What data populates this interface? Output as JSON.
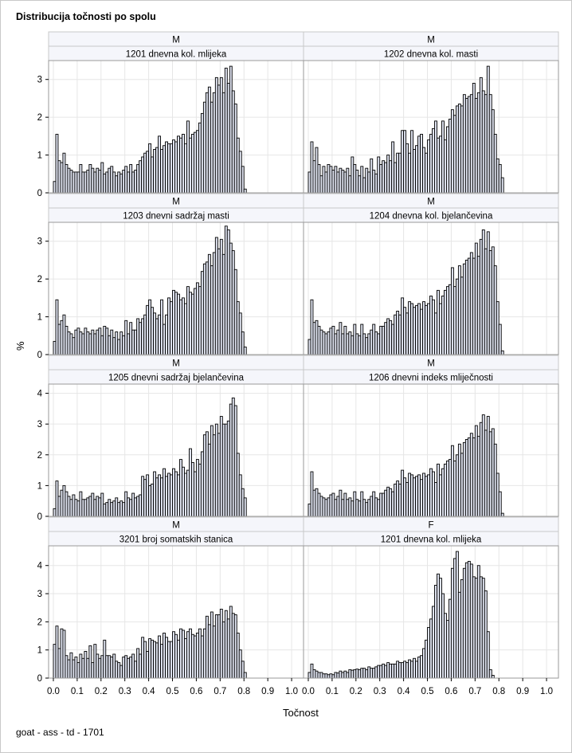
{
  "title": "Distribucija točnosti po spolu",
  "footnote": "goat - ass - td - 1701",
  "chart_data": {
    "type": "bar",
    "subtype": "histogram-panel",
    "xlabel": "Točnost",
    "ylabel": "%",
    "xlim": [
      -0.02,
      1.05
    ],
    "xticks": [
      0.0,
      0.1,
      0.2,
      0.3,
      0.4,
      0.5,
      0.6,
      0.7,
      0.8,
      0.9,
      1.0
    ],
    "xtick_labels": [
      "0.0",
      "0.1",
      "0.2",
      "0.3",
      "0.4",
      "0.5",
      "0.6",
      "0.7",
      "0.8",
      "0.9",
      "1.0"
    ],
    "bin_start": 0.0,
    "bin_width": 0.01,
    "grid": true,
    "rows": [
      {
        "ylim": [
          0,
          3.5
        ],
        "yticks": [
          0,
          1,
          2,
          3
        ],
        "ytick_labels": [
          "0",
          "1",
          "2",
          "3"
        ]
      },
      {
        "ylim": [
          0,
          3.5
        ],
        "yticks": [
          0,
          1,
          2,
          3
        ],
        "ytick_labels": [
          "0",
          "1",
          "2",
          "3"
        ]
      },
      {
        "ylim": [
          0,
          4.3
        ],
        "yticks": [
          0,
          1,
          2,
          3,
          4
        ],
        "ytick_labels": [
          "0",
          "1",
          "2",
          "3",
          "4"
        ]
      },
      {
        "ylim": [
          0,
          4.7
        ],
        "yticks": [
          0,
          1,
          2,
          3,
          4
        ],
        "ytick_labels": [
          "0",
          "1",
          "2",
          "3",
          "4"
        ]
      }
    ],
    "panels": [
      {
        "sex": "M",
        "trait": "1201 dnevna kol. mlijeka",
        "row": 0,
        "col": 0,
        "values": [
          0.3,
          1.55,
          0.85,
          0.8,
          1.05,
          0.75,
          0.65,
          0.6,
          0.55,
          0.55,
          0.55,
          0.75,
          0.55,
          0.55,
          0.6,
          0.75,
          0.65,
          0.55,
          0.65,
          0.6,
          0.8,
          0.5,
          0.55,
          0.65,
          0.7,
          0.55,
          0.45,
          0.55,
          0.5,
          0.6,
          0.7,
          0.55,
          0.75,
          0.55,
          0.6,
          0.75,
          0.85,
          0.95,
          1.05,
          1.1,
          1.3,
          0.95,
          1.15,
          1.2,
          1.5,
          1.15,
          1.25,
          1.35,
          1.3,
          1.3,
          1.4,
          1.35,
          1.5,
          1.45,
          1.55,
          1.3,
          1.9,
          1.45,
          1.55,
          1.6,
          1.65,
          1.85,
          2.1,
          2.4,
          2.65,
          2.8,
          2.4,
          2.65,
          3.05,
          2.85,
          3.05,
          2.65,
          3.3,
          2.9,
          3.35,
          2.7,
          2.35,
          1.45,
          1.1,
          0.7,
          0.1
        ]
      },
      {
        "sex": "M",
        "trait": "1202 dnevna kol. masti",
        "row": 0,
        "col": 1,
        "values": [
          0.55,
          1.35,
          0.85,
          1.2,
          0.75,
          0.45,
          0.7,
          0.55,
          0.75,
          0.7,
          0.6,
          0.7,
          0.55,
          0.65,
          0.6,
          0.55,
          0.65,
          0.45,
          0.95,
          0.75,
          0.6,
          0.45,
          0.7,
          0.4,
          0.65,
          0.55,
          0.9,
          0.6,
          0.5,
          0.95,
          0.75,
          0.85,
          0.8,
          1.0,
          0.85,
          1.35,
          0.8,
          1.05,
          1.05,
          1.65,
          1.65,
          1.3,
          1.05,
          1.65,
          1.15,
          1.25,
          1.5,
          1.55,
          1.2,
          1.05,
          1.4,
          1.55,
          1.7,
          1.9,
          1.45,
          1.5,
          1.9,
          1.4,
          1.75,
          1.95,
          2.2,
          2.05,
          2.3,
          2.35,
          2.3,
          2.6,
          2.5,
          2.55,
          2.6,
          2.9,
          2.5,
          2.65,
          3.05,
          2.7,
          2.6,
          3.35,
          2.6,
          2.2,
          1.55,
          0.9,
          0.75,
          0.4
        ]
      },
      {
        "sex": "M",
        "trait": "1203 dnevni sadržaj masti",
        "row": 1,
        "col": 0,
        "values": [
          0.35,
          1.45,
          0.8,
          0.9,
          1.05,
          0.75,
          0.6,
          0.55,
          0.45,
          0.65,
          0.7,
          0.6,
          0.55,
          0.7,
          0.6,
          0.55,
          0.65,
          0.55,
          0.65,
          0.7,
          0.5,
          0.75,
          0.7,
          0.5,
          0.65,
          0.45,
          0.6,
          0.4,
          0.6,
          0.5,
          0.9,
          0.55,
          0.85,
          0.65,
          0.65,
          0.95,
          0.85,
          0.95,
          1.05,
          1.3,
          1.45,
          1.25,
          1.1,
          0.95,
          1.05,
          1.45,
          0.8,
          1.05,
          1.5,
          1.4,
          1.7,
          1.65,
          1.6,
          1.45,
          1.5,
          1.35,
          1.8,
          1.65,
          1.6,
          1.75,
          1.9,
          1.8,
          2.2,
          2.4,
          2.45,
          2.65,
          2.35,
          2.7,
          3.1,
          2.8,
          3.05,
          2.65,
          3.4,
          3.3,
          2.95,
          2.75,
          2.25,
          1.4,
          1.1,
          0.6,
          0.2
        ]
      },
      {
        "sex": "M",
        "trait": "1204 dnevna kol. bjelančevina",
        "row": 1,
        "col": 1,
        "values": [
          0.4,
          1.45,
          0.85,
          0.9,
          0.75,
          0.65,
          0.6,
          0.55,
          0.6,
          0.7,
          0.75,
          0.55,
          0.65,
          0.85,
          0.55,
          0.75,
          0.55,
          0.6,
          0.5,
          0.8,
          0.55,
          0.5,
          0.8,
          0.55,
          0.45,
          0.55,
          0.65,
          0.8,
          0.6,
          0.55,
          0.75,
          0.75,
          0.85,
          0.95,
          0.9,
          0.8,
          1.05,
          1.15,
          1.05,
          1.5,
          1.25,
          1.1,
          1.4,
          1.35,
          1.25,
          1.3,
          1.35,
          1.2,
          1.4,
          1.3,
          1.35,
          1.55,
          1.45,
          1.1,
          1.7,
          1.35,
          1.55,
          1.7,
          1.8,
          1.85,
          2.3,
          1.8,
          2.0,
          2.35,
          2.05,
          2.4,
          2.5,
          2.55,
          2.7,
          2.55,
          2.95,
          2.6,
          3.05,
          3.3,
          2.8,
          3.25,
          2.75,
          2.85,
          2.35,
          1.4,
          0.8,
          0.1
        ]
      },
      {
        "sex": "M",
        "trait": "1205 dnevni sadržaj bjelančevina",
        "row": 2,
        "col": 0,
        "values": [
          0.25,
          1.15,
          0.65,
          0.85,
          1.0,
          0.8,
          0.65,
          0.55,
          0.7,
          0.55,
          0.5,
          0.8,
          0.55,
          0.55,
          0.6,
          0.65,
          0.75,
          0.55,
          0.65,
          0.6,
          0.75,
          0.4,
          0.45,
          0.55,
          0.45,
          0.5,
          0.6,
          0.45,
          0.5,
          0.45,
          0.8,
          0.6,
          0.55,
          0.75,
          0.6,
          0.65,
          0.7,
          1.3,
          1.2,
          1.35,
          1.0,
          1.05,
          1.45,
          1.25,
          1.35,
          1.25,
          1.55,
          1.3,
          1.4,
          1.35,
          1.55,
          1.45,
          1.35,
          1.85,
          1.6,
          1.4,
          1.5,
          2.2,
          1.75,
          1.45,
          1.85,
          1.7,
          2.1,
          2.65,
          2.75,
          2.35,
          2.95,
          2.65,
          3.0,
          2.7,
          3.25,
          3.0,
          3.0,
          3.1,
          3.65,
          3.85,
          3.6,
          2.05,
          1.35,
          0.9,
          0.6
        ]
      },
      {
        "sex": "M",
        "trait": "1206 dnevni indeks mliječnosti",
        "row": 2,
        "col": 1,
        "values": [
          0.4,
          1.45,
          0.85,
          0.9,
          0.75,
          0.65,
          0.6,
          0.55,
          0.6,
          0.7,
          0.75,
          0.55,
          0.65,
          0.85,
          0.55,
          0.75,
          0.55,
          0.6,
          0.5,
          0.8,
          0.55,
          0.5,
          0.8,
          0.55,
          0.45,
          0.55,
          0.65,
          0.8,
          0.6,
          0.55,
          0.75,
          0.75,
          0.85,
          0.95,
          0.9,
          0.8,
          1.05,
          1.15,
          1.05,
          1.5,
          1.25,
          1.1,
          1.4,
          1.35,
          1.25,
          1.3,
          1.35,
          1.2,
          1.4,
          1.3,
          1.35,
          1.55,
          1.45,
          1.1,
          1.7,
          1.35,
          1.55,
          1.7,
          1.8,
          1.85,
          2.3,
          1.8,
          2.0,
          2.35,
          2.05,
          2.4,
          2.5,
          2.55,
          2.7,
          2.55,
          2.95,
          2.6,
          3.05,
          3.3,
          2.8,
          3.25,
          2.75,
          2.85,
          2.35,
          1.4,
          0.8,
          0.1
        ]
      },
      {
        "sex": "M",
        "trait": "3201 broj somatskih stanica",
        "row": 3,
        "col": 0,
        "values": [
          1.2,
          1.85,
          1.05,
          1.75,
          1.7,
          0.8,
          0.65,
          0.9,
          0.65,
          0.75,
          0.55,
          0.85,
          0.7,
          0.95,
          0.7,
          1.15,
          0.55,
          1.2,
          0.85,
          0.7,
          0.8,
          1.35,
          0.8,
          0.8,
          0.75,
          0.85,
          0.6,
          0.55,
          0.45,
          0.75,
          0.8,
          0.7,
          0.75,
          0.85,
          0.6,
          1.05,
          0.85,
          1.45,
          1.3,
          0.95,
          1.4,
          1.35,
          1.3,
          1.25,
          1.5,
          1.2,
          1.6,
          1.45,
          1.3,
          1.3,
          1.65,
          1.55,
          1.35,
          1.75,
          1.7,
          1.4,
          1.65,
          1.75,
          1.55,
          1.5,
          1.6,
          1.75,
          1.5,
          1.75,
          2.2,
          1.9,
          2.35,
          1.85,
          2.25,
          2.25,
          2.45,
          2.0,
          2.4,
          2.1,
          2.55,
          2.3,
          2.25,
          1.6,
          1.0,
          0.6,
          0.2
        ]
      },
      {
        "sex": "F",
        "trait": "1201 dnevna kol. mlijeka",
        "row": 3,
        "col": 1,
        "values": [
          0.2,
          0.5,
          0.3,
          0.25,
          0.2,
          0.2,
          0.15,
          0.15,
          0.12,
          0.15,
          0.12,
          0.2,
          0.18,
          0.25,
          0.2,
          0.25,
          0.2,
          0.3,
          0.28,
          0.3,
          0.32,
          0.3,
          0.35,
          0.35,
          0.3,
          0.4,
          0.35,
          0.35,
          0.4,
          0.45,
          0.45,
          0.5,
          0.45,
          0.55,
          0.5,
          0.5,
          0.5,
          0.6,
          0.55,
          0.55,
          0.6,
          0.55,
          0.65,
          0.6,
          0.7,
          0.6,
          0.75,
          0.8,
          1.05,
          1.35,
          1.8,
          2.1,
          2.55,
          3.3,
          3.7,
          3.55,
          3.0,
          2.3,
          2.05,
          2.8,
          3.9,
          4.25,
          4.5,
          3.05,
          3.5,
          3.9,
          4.1,
          4.15,
          4.05,
          3.6,
          3.55,
          4.0,
          3.6,
          3.55,
          3.1,
          1.65,
          0.3,
          0.1
        ]
      }
    ]
  }
}
